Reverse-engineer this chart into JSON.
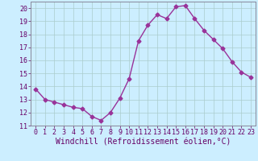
{
  "x": [
    0,
    1,
    2,
    3,
    4,
    5,
    6,
    7,
    8,
    9,
    10,
    11,
    12,
    13,
    14,
    15,
    16,
    17,
    18,
    19,
    20,
    21,
    22,
    23
  ],
  "y": [
    13.8,
    13.0,
    12.8,
    12.6,
    12.4,
    12.3,
    11.7,
    11.4,
    12.0,
    13.1,
    14.6,
    17.5,
    18.7,
    19.5,
    19.2,
    20.1,
    20.2,
    19.2,
    18.3,
    17.6,
    16.9,
    15.9,
    15.1,
    14.7
  ],
  "line_color": "#993399",
  "marker": "D",
  "markersize": 2.5,
  "linewidth": 1.0,
  "background_color": "#cceeff",
  "grid_color": "#aacccc",
  "xlabel": "Windchill (Refroidissement éolien,°C)",
  "xlabel_fontsize": 7,
  "tick_fontsize": 6,
  "xlim": [
    -0.5,
    23.5
  ],
  "ylim": [
    11,
    20.5
  ],
  "yticks": [
    11,
    12,
    13,
    14,
    15,
    16,
    17,
    18,
    19,
    20
  ],
  "xticks": [
    0,
    1,
    2,
    3,
    4,
    5,
    6,
    7,
    8,
    9,
    10,
    11,
    12,
    13,
    14,
    15,
    16,
    17,
    18,
    19,
    20,
    21,
    22,
    23
  ],
  "spine_color": "#888899",
  "text_color": "#660066"
}
